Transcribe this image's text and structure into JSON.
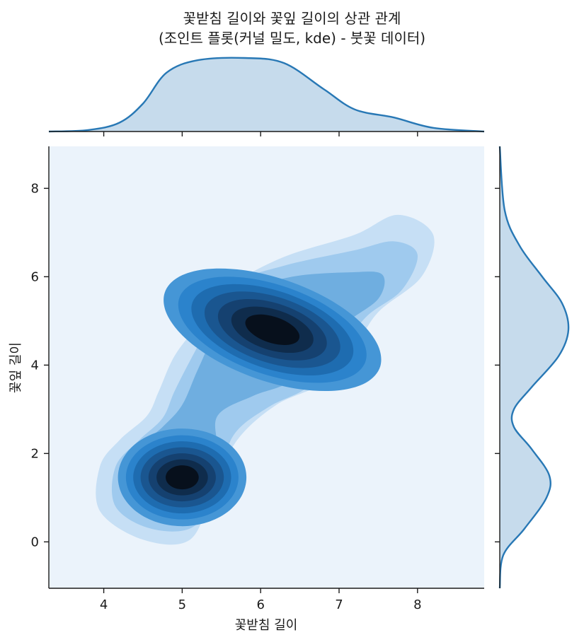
{
  "chart_data": {
    "type": "kde-joint",
    "title": "꽃받침 길이와 꽃잎 길이의 상관 관계",
    "subtitle": "(조인트 플롯(커널 밀도, kde) - 붓꽃 데이터)",
    "xlabel": "꽃받침 길이",
    "ylabel": "꽃잎 길이",
    "xlim": [
      3.3,
      8.85
    ],
    "ylim": [
      -1.05,
      8.95
    ],
    "xticks": [
      "4",
      "5",
      "6",
      "7",
      "8"
    ],
    "yticks": [
      "0",
      "2",
      "4",
      "6",
      "8"
    ],
    "clusters": [
      {
        "name": "",
        "cx": 5.0,
        "cy": 1.46,
        "peak_density": "high"
      },
      {
        "name": "",
        "cx": 6.25,
        "cy": 4.85,
        "peak_density": "high"
      }
    ],
    "contour_levels": 10,
    "marginal_x": {
      "x": [
        3.3,
        3.8,
        4.2,
        4.5,
        4.8,
        5.2,
        5.8,
        6.3,
        6.8,
        7.2,
        7.7,
        8.2,
        8.85
      ],
      "density": [
        0.0,
        0.02,
        0.12,
        0.38,
        0.8,
        0.97,
        1.0,
        0.93,
        0.58,
        0.3,
        0.19,
        0.05,
        0.0
      ]
    },
    "marginal_y": {
      "y": [
        -1.05,
        -0.3,
        0.3,
        1.0,
        1.5,
        2.1,
        2.6,
        3.0,
        3.5,
        4.2,
        4.8,
        5.4,
        6.0,
        6.7,
        7.5,
        8.95
      ],
      "density": [
        0.0,
        0.05,
        0.35,
        0.66,
        0.7,
        0.45,
        0.2,
        0.2,
        0.45,
        0.83,
        0.97,
        0.88,
        0.6,
        0.28,
        0.07,
        0.0
      ]
    },
    "colors": {
      "background": "#ebf3fb",
      "contour_scale": [
        "#c6dff5",
        "#9fcaee",
        "#6faee0",
        "#4596d6",
        "#2b83cc",
        "#1e6cb0",
        "#1a5690",
        "#154170",
        "#0f2c4c",
        "#07101c"
      ],
      "marginal_line": "#2878b5",
      "marginal_fill": "#c6dbec",
      "axis": "#1a1a1a"
    },
    "grid": false,
    "legend": "none"
  }
}
